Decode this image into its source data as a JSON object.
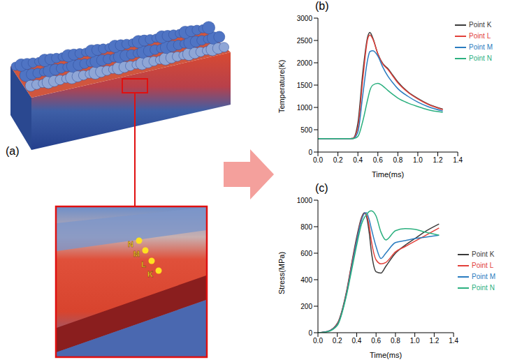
{
  "figure": {
    "panel_a": {
      "label": "(a)",
      "points": [
        "N",
        "M",
        "L",
        "K"
      ]
    }
  },
  "chart_data": [
    {
      "type": "line",
      "panel": "(b)",
      "x_label": "Time(ms)",
      "y_label": "Temperature(K)",
      "x": [
        0,
        0.1,
        0.2,
        0.3,
        0.35,
        0.4,
        0.45,
        0.5,
        0.52,
        0.55,
        0.6,
        0.65,
        0.7,
        0.75,
        0.8,
        0.9,
        1.0,
        1.1,
        1.25
      ],
      "series": [
        {
          "name": "Point K",
          "color": "#3a3a3a",
          "values": [
            300,
            300,
            300,
            300,
            310,
            650,
            1800,
            2600,
            2680,
            2550,
            2200,
            1980,
            1870,
            1720,
            1570,
            1350,
            1200,
            1080,
            960
          ]
        },
        {
          "name": "Point L",
          "color": "#e2403a",
          "values": [
            300,
            300,
            300,
            300,
            305,
            550,
            1650,
            2550,
            2620,
            2530,
            2200,
            1970,
            1850,
            1700,
            1550,
            1340,
            1190,
            1070,
            950
          ]
        },
        {
          "name": "Point M",
          "color": "#2a7cc0",
          "values": [
            300,
            300,
            300,
            300,
            300,
            450,
            1300,
            2100,
            2250,
            2270,
            2150,
            1900,
            1700,
            1550,
            1420,
            1250,
            1120,
            1020,
            920
          ]
        },
        {
          "name": "Point N",
          "color": "#2bb07f",
          "values": [
            300,
            300,
            300,
            300,
            300,
            350,
            700,
            1200,
            1380,
            1500,
            1540,
            1480,
            1380,
            1290,
            1210,
            1100,
            1020,
            950,
            890
          ]
        }
      ],
      "xlim": [
        0,
        1.4
      ],
      "xticks": [
        {
          "value": 0,
          "label": "0.0"
        },
        0.2,
        0.4,
        0.6,
        0.8,
        {
          "value": 1,
          "label": "1.0"
        },
        1.2,
        1.4
      ],
      "ylim": [
        0,
        3000
      ],
      "yticks": [
        0,
        500,
        1000,
        1500,
        2000,
        2500,
        3000
      ],
      "grid": false,
      "legend": "upper right"
    },
    {
      "type": "line",
      "panel": "(c)",
      "x_label": "Time(ms)",
      "y_label": "Stress(MPa)",
      "x": [
        0,
        0.1,
        0.2,
        0.3,
        0.35,
        0.4,
        0.45,
        0.48,
        0.5,
        0.53,
        0.55,
        0.6,
        0.65,
        0.7,
        0.8,
        0.9,
        1.0,
        1.1,
        1.25
      ],
      "series": [
        {
          "name": "Point K",
          "color": "#3a3a3a",
          "values": [
            0,
            10,
            70,
            330,
            530,
            720,
            870,
            905,
            880,
            750,
            620,
            460,
            450,
            500,
            600,
            660,
            710,
            760,
            820
          ]
        },
        {
          "name": "Point L",
          "color": "#e2403a",
          "values": [
            0,
            10,
            65,
            320,
            520,
            700,
            860,
            900,
            890,
            800,
            700,
            550,
            520,
            530,
            610,
            650,
            690,
            730,
            790
          ]
        },
        {
          "name": "Point M",
          "color": "#2a7cc0",
          "values": [
            0,
            10,
            60,
            310,
            500,
            690,
            850,
            900,
            905,
            850,
            790,
            650,
            560,
            600,
            680,
            695,
            710,
            720,
            735
          ]
        },
        {
          "name": "Point N",
          "color": "#2bb07f",
          "values": [
            0,
            8,
            55,
            300,
            480,
            660,
            820,
            870,
            890,
            915,
            920,
            880,
            760,
            700,
            770,
            785,
            780,
            760,
            735
          ]
        }
      ],
      "xlim": [
        0,
        1.4
      ],
      "xticks": [
        {
          "value": 0,
          "label": "0.0"
        },
        0.2,
        0.4,
        0.6,
        0.8,
        {
          "value": 1,
          "label": "1.0"
        },
        1.2,
        1.4
      ],
      "ylim": [
        0,
        1000
      ],
      "yticks": [
        0,
        200,
        400,
        600,
        800,
        1000
      ],
      "grid": false,
      "legend": "right"
    }
  ]
}
